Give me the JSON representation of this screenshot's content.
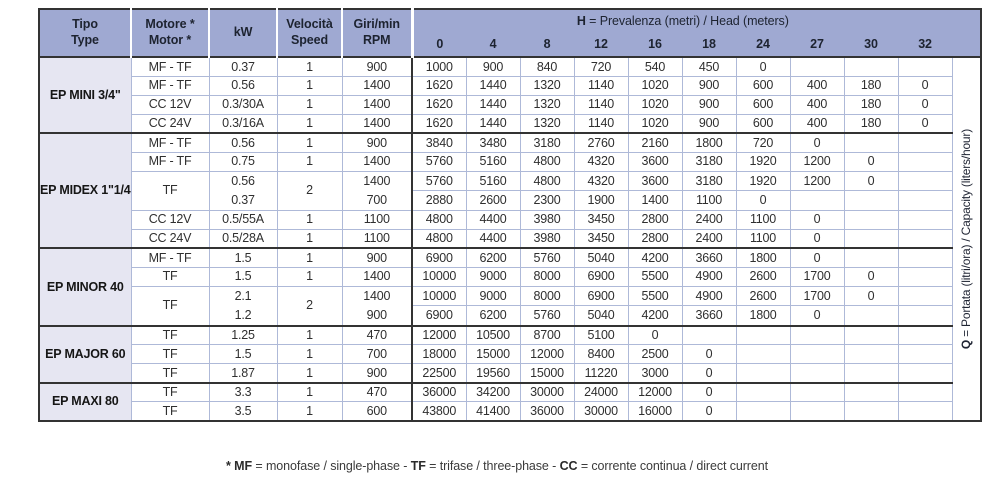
{
  "colors": {
    "header_blue": "#9fa9d2",
    "row_label_lavender": "#e6e6f2",
    "grid_light": "#aeb9d8",
    "grid_dark": "#333333"
  },
  "table": {
    "header": {
      "left": [
        {
          "line1": "Tipo",
          "line2": "Type"
        },
        {
          "line1": "Motore *",
          "line2": "Motor *"
        },
        {
          "line1": "kW",
          "line2": ""
        },
        {
          "line1": "Velocità",
          "line2": "Speed"
        },
        {
          "line1": "Giri/min",
          "line2": "RPM"
        }
      ],
      "h_title_bold": "H",
      "h_title_rest": " = Prevalenza (metri) / Head (meters)",
      "h_values": [
        "0",
        "4",
        "8",
        "12",
        "16",
        "18",
        "24",
        "27",
        "30",
        "32"
      ]
    },
    "q_axis": {
      "bold": "Q",
      "rest": " = Portata (litri/ora) / Capacity (liters/hour)"
    },
    "groups": [
      {
        "name": "EP MINI 3/4\"",
        "rows": [
          {
            "motor": "MF - TF",
            "kw": [
              "0.37"
            ],
            "speed": "1",
            "rpm": [
              "900"
            ],
            "q": [
              [
                "1000",
                "900",
                "840",
                "720",
                "540",
                "450",
                "0",
                "",
                "",
                ""
              ]
            ]
          },
          {
            "motor": "MF - TF",
            "kw": [
              "0.56"
            ],
            "speed": "1",
            "rpm": [
              "1400"
            ],
            "q": [
              [
                "1620",
                "1440",
                "1320",
                "1140",
                "1020",
                "900",
                "600",
                "400",
                "180",
                "0"
              ]
            ]
          },
          {
            "motor": "CC 12V",
            "kw": [
              "0.3/30A"
            ],
            "speed": "1",
            "rpm": [
              "1400"
            ],
            "q": [
              [
                "1620",
                "1440",
                "1320",
                "1140",
                "1020",
                "900",
                "600",
                "400",
                "180",
                "0"
              ]
            ]
          },
          {
            "motor": "CC 24V",
            "kw": [
              "0.3/16A"
            ],
            "speed": "1",
            "rpm": [
              "1400"
            ],
            "q": [
              [
                "1620",
                "1440",
                "1320",
                "1140",
                "1020",
                "900",
                "600",
                "400",
                "180",
                "0"
              ]
            ]
          }
        ]
      },
      {
        "name": "EP MIDEX 1\"1/4",
        "rows": [
          {
            "motor": "MF - TF",
            "kw": [
              "0.56"
            ],
            "speed": "1",
            "rpm": [
              "900"
            ],
            "q": [
              [
                "3840",
                "3480",
                "3180",
                "2760",
                "2160",
                "1800",
                "720",
                "0",
                "",
                ""
              ]
            ]
          },
          {
            "motor": "MF - TF",
            "kw": [
              "0.75"
            ],
            "speed": "1",
            "rpm": [
              "1400"
            ],
            "q": [
              [
                "5760",
                "5160",
                "4800",
                "4320",
                "3600",
                "3180",
                "1920",
                "1200",
                "0",
                ""
              ]
            ]
          },
          {
            "motor": "TF",
            "kw": [
              "0.56",
              "0.37"
            ],
            "speed": "2",
            "rpm": [
              "1400",
              "700"
            ],
            "q": [
              [
                "5760",
                "5160",
                "4800",
                "4320",
                "3600",
                "3180",
                "1920",
                "1200",
                "0",
                ""
              ],
              [
                "2880",
                "2600",
                "2300",
                "1900",
                "1400",
                "1100",
                "0",
                "",
                "",
                ""
              ]
            ]
          },
          {
            "motor": "CC 12V",
            "kw": [
              "0.5/55A"
            ],
            "speed": "1",
            "rpm": [
              "1100"
            ],
            "q": [
              [
                "4800",
                "4400",
                "3980",
                "3450",
                "2800",
                "2400",
                "1100",
                "0",
                "",
                ""
              ]
            ]
          },
          {
            "motor": "CC 24V",
            "kw": [
              "0.5/28A"
            ],
            "speed": "1",
            "rpm": [
              "1100"
            ],
            "q": [
              [
                "4800",
                "4400",
                "3980",
                "3450",
                "2800",
                "2400",
                "1100",
                "0",
                "",
                ""
              ]
            ]
          }
        ]
      },
      {
        "name": "EP MINOR 40",
        "rows": [
          {
            "motor": "MF - TF",
            "kw": [
              "1.5"
            ],
            "speed": "1",
            "rpm": [
              "900"
            ],
            "q": [
              [
                "6900",
                "6200",
                "5760",
                "5040",
                "4200",
                "3660",
                "1800",
                "0",
                "",
                ""
              ]
            ]
          },
          {
            "motor": "TF",
            "kw": [
              "1.5"
            ],
            "speed": "1",
            "rpm": [
              "1400"
            ],
            "q": [
              [
                "10000",
                "9000",
                "8000",
                "6900",
                "5500",
                "4900",
                "2600",
                "1700",
                "0",
                ""
              ]
            ]
          },
          {
            "motor": "TF",
            "kw": [
              "2.1",
              "1.2"
            ],
            "speed": "2",
            "rpm": [
              "1400",
              "900"
            ],
            "q": [
              [
                "10000",
                "9000",
                "8000",
                "6900",
                "5500",
                "4900",
                "2600",
                "1700",
                "0",
                ""
              ],
              [
                "6900",
                "6200",
                "5760",
                "5040",
                "4200",
                "3660",
                "1800",
                "0",
                "",
                ""
              ]
            ]
          }
        ]
      },
      {
        "name": "EP MAJOR 60",
        "rows": [
          {
            "motor": "TF",
            "kw": [
              "1.25"
            ],
            "speed": "1",
            "rpm": [
              "470"
            ],
            "q": [
              [
                "12000",
                "10500",
                "8700",
                "5100",
                "0",
                "",
                "",
                "",
                "",
                ""
              ]
            ]
          },
          {
            "motor": "TF",
            "kw": [
              "1.5"
            ],
            "speed": "1",
            "rpm": [
              "700"
            ],
            "q": [
              [
                "18000",
                "15000",
                "12000",
                "8400",
                "2500",
                "0",
                "",
                "",
                "",
                ""
              ]
            ]
          },
          {
            "motor": "TF",
            "kw": [
              "1.87"
            ],
            "speed": "1",
            "rpm": [
              "900"
            ],
            "q": [
              [
                "22500",
                "19560",
                "15000",
                "11220",
                "3000",
                "0",
                "",
                "",
                "",
                ""
              ]
            ]
          }
        ]
      },
      {
        "name": "EP MAXI 80",
        "rows": [
          {
            "motor": "TF",
            "kw": [
              "3.3"
            ],
            "speed": "1",
            "rpm": [
              "470"
            ],
            "q": [
              [
                "36000",
                "34200",
                "30000",
                "24000",
                "12000",
                "0",
                "",
                "",
                "",
                ""
              ]
            ]
          },
          {
            "motor": "TF",
            "kw": [
              "3.5"
            ],
            "speed": "1",
            "rpm": [
              "600"
            ],
            "q": [
              [
                "43800",
                "41400",
                "36000",
                "30000",
                "16000",
                "0",
                "",
                "",
                "",
                ""
              ]
            ]
          }
        ]
      }
    ]
  },
  "page": {
    "footnote": [
      {
        "text": "* MF",
        "bold": true
      },
      {
        "text": " = monofase / single-phase - "
      },
      {
        "text": "TF",
        "bold": true
      },
      {
        "text": " = trifase / three-phase - "
      },
      {
        "text": "CC",
        "bold": true
      },
      {
        "text": " = corrente continua / direct current"
      }
    ]
  }
}
